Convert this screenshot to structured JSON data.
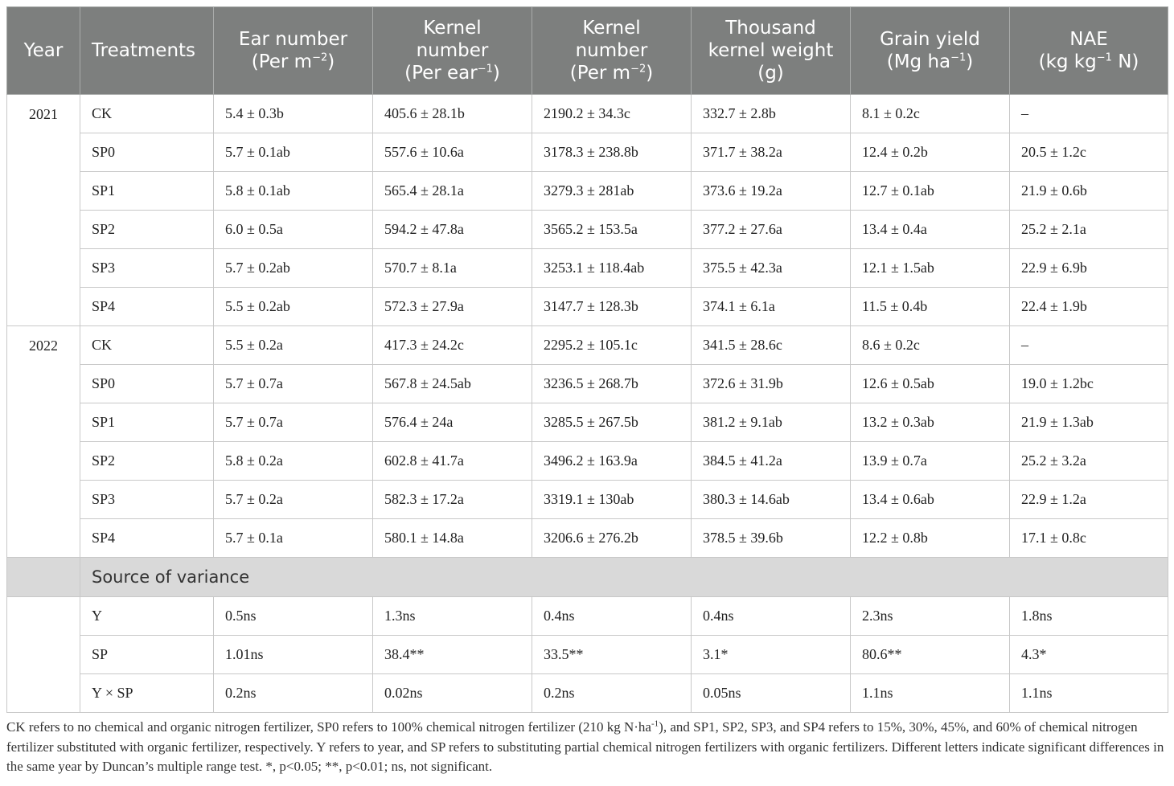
{
  "header": {
    "year": "Year",
    "treatments": "Treatments",
    "ear_line1": "Ear number",
    "ear_line2_pre": "(Per m",
    "ear_line2_sup": "−2",
    "ear_line2_post": ")",
    "kernel_ear_line1": "Kernel",
    "kernel_ear_line2": "number",
    "kernel_ear_line3_pre": "(Per ear",
    "kernel_ear_line3_sup": "−1",
    "kernel_ear_line3_post": ")",
    "kernel_m2_line1": "Kernel",
    "kernel_m2_line2": "number",
    "kernel_m2_line3_pre": "(Per m",
    "kernel_m2_line3_sup": "−2",
    "kernel_m2_line3_post": ")",
    "tkw_line1": "Thousand",
    "tkw_line2": "kernel weight",
    "tkw_line3": "(g)",
    "gy_line1": "Grain yield",
    "gy_line2_pre": "(Mg ha",
    "gy_line2_sup": "−1",
    "gy_line2_post": ")",
    "nae_line1": "NAE",
    "nae_line2_pre": "(kg kg",
    "nae_line2_sup": "−1",
    "nae_line2_post": " N)"
  },
  "groups": [
    {
      "year": "2021",
      "rows": [
        {
          "treatment": "CK",
          "ear": "5.4 ± 0.3b",
          "kernel_ear": "405.6 ± 28.1b",
          "kernel_m2": "2190.2 ± 34.3c",
          "tkw": "332.7 ± 2.8b",
          "grain_yield": "8.1 ± 0.2c",
          "nae": "–"
        },
        {
          "treatment": "SP0",
          "ear": "5.7 ± 0.1ab",
          "kernel_ear": "557.6 ± 10.6a",
          "kernel_m2": "3178.3 ± 238.8b",
          "tkw": "371.7 ± 38.2a",
          "grain_yield": "12.4 ± 0.2b",
          "nae": "20.5 ± 1.2c"
        },
        {
          "treatment": "SP1",
          "ear": "5.8 ± 0.1ab",
          "kernel_ear": "565.4 ± 28.1a",
          "kernel_m2": "3279.3 ± 281ab",
          "tkw": "373.6 ± 19.2a",
          "grain_yield": "12.7 ± 0.1ab",
          "nae": "21.9 ± 0.6b"
        },
        {
          "treatment": "SP2",
          "ear": "6.0 ± 0.5a",
          "kernel_ear": "594.2 ± 47.8a",
          "kernel_m2": "3565.2 ± 153.5a",
          "tkw": "377.2 ± 27.6a",
          "grain_yield": "13.4 ± 0.4a",
          "nae": "25.2 ± 2.1a"
        },
        {
          "treatment": "SP3",
          "ear": "5.7 ± 0.2ab",
          "kernel_ear": "570.7 ± 8.1a",
          "kernel_m2": "3253.1 ± 118.4ab",
          "tkw": "375.5 ± 42.3a",
          "grain_yield": "12.1 ± 1.5ab",
          "nae": "22.9 ± 6.9b"
        },
        {
          "treatment": "SP4",
          "ear": "5.5 ± 0.2ab",
          "kernel_ear": "572.3 ± 27.9a",
          "kernel_m2": "3147.7 ± 128.3b",
          "tkw": "374.1 ± 6.1a",
          "grain_yield": "11.5 ± 0.4b",
          "nae": "22.4 ± 1.9b"
        }
      ]
    },
    {
      "year": "2022",
      "rows": [
        {
          "treatment": "CK",
          "ear": "5.5 ± 0.2a",
          "kernel_ear": "417.3 ± 24.2c",
          "kernel_m2": "2295.2 ± 105.1c",
          "tkw": "341.5 ± 28.6c",
          "grain_yield": "8.6 ± 0.2c",
          "nae": "–"
        },
        {
          "treatment": "SP0",
          "ear": "5.7 ± 0.7a",
          "kernel_ear": "567.8 ± 24.5ab",
          "kernel_m2": "3236.5 ± 268.7b",
          "tkw": "372.6 ± 31.9b",
          "grain_yield": "12.6 ± 0.5ab",
          "nae": "19.0 ± 1.2bc"
        },
        {
          "treatment": "SP1",
          "ear": "5.7 ± 0.7a",
          "kernel_ear": "576.4 ± 24a",
          "kernel_m2": "3285.5 ± 267.5b",
          "tkw": "381.2 ± 9.1ab",
          "grain_yield": "13.2 ± 0.3ab",
          "nae": "21.9 ± 1.3ab"
        },
        {
          "treatment": "SP2",
          "ear": "5.8 ± 0.2a",
          "kernel_ear": "602.8 ± 41.7a",
          "kernel_m2": "3496.2 ± 163.9a",
          "tkw": "384.5 ± 41.2a",
          "grain_yield": "13.9 ± 0.7a",
          "nae": "25.2 ± 3.2a"
        },
        {
          "treatment": "SP3",
          "ear": "5.7 ± 0.2a",
          "kernel_ear": "582.3 ± 17.2a",
          "kernel_m2": "3319.1 ± 130ab",
          "tkw": "380.3 ± 14.6ab",
          "grain_yield": "13.4 ± 0.6ab",
          "nae": "22.9 ± 1.2a"
        },
        {
          "treatment": "SP4",
          "ear": "5.7 ± 0.1a",
          "kernel_ear": "580.1 ± 14.8a",
          "kernel_m2": "3206.6 ± 276.2b",
          "tkw": "378.5 ± 39.6b",
          "grain_yield": "12.2 ± 0.8b",
          "nae": "17.1 ± 0.8c"
        }
      ]
    }
  ],
  "variance": {
    "label": "Source of variance",
    "rows": [
      {
        "treatment": "Y",
        "ear": "0.5ns",
        "kernel_ear": "1.3ns",
        "kernel_m2": "0.4ns",
        "tkw": "0.4ns",
        "grain_yield": "2.3ns",
        "nae": "1.8ns"
      },
      {
        "treatment": "SP",
        "ear": "1.01ns",
        "kernel_ear": "38.4**",
        "kernel_m2": "33.5**",
        "tkw": "3.1*",
        "grain_yield": "80.6**",
        "nae": "4.3*"
      },
      {
        "treatment": "Y × SP",
        "ear": "0.2ns",
        "kernel_ear": "0.02ns",
        "kernel_m2": "0.2ns",
        "tkw": "0.05ns",
        "grain_yield": "1.1ns",
        "nae": "1.1ns"
      }
    ]
  },
  "footnote": {
    "part1": "CK refers to no chemical and organic nitrogen fertilizer, SP0 refers to 100% chemical nitrogen fertilizer (210 kg N·ha",
    "sup": "-1",
    "part2": "), and SP1, SP2, SP3, and SP4 refers to 15%, 30%, 45%, and 60% of chemical nitrogen fertilizer substituted with organic fertilizer, respectively. Y refers to year, and SP refers to substituting partial chemical nitrogen fertilizers with organic fertilizers. Different letters indicate significant differences in the same year by Duncan’s multiple range test. *, p<0.05; **, p<0.01; ns, not significant."
  },
  "colors": {
    "header_bg": "#7d7f7e",
    "source_row_bg": "#d9d9d9",
    "border": "#c8c8c8"
  }
}
